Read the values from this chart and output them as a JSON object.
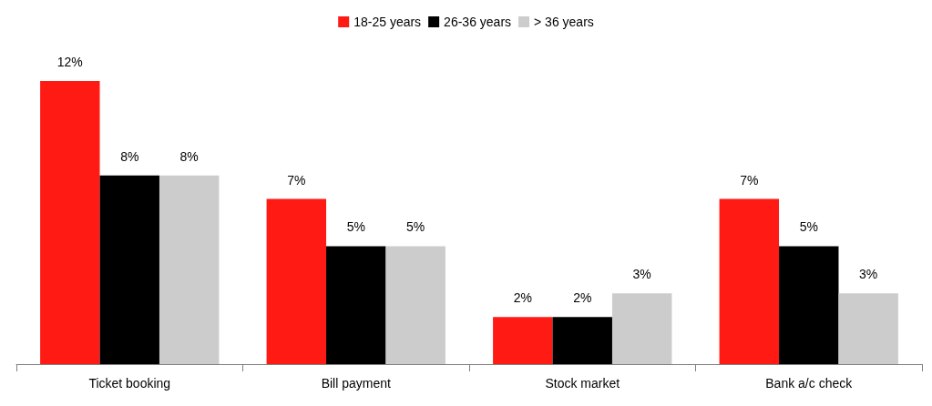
{
  "chart_data": {
    "type": "bar",
    "categories": [
      "Ticket booking",
      "Bill payment",
      "Stock market",
      "Bank a/c check"
    ],
    "series": [
      {
        "name": "18-25 years",
        "color": "#ff1a14",
        "values": [
          12,
          7,
          2,
          7
        ],
        "value_labels": [
          "12%",
          "7%",
          "2%",
          "7%"
        ]
      },
      {
        "name": "26-36 years",
        "color": "#000000",
        "values": [
          8,
          5,
          2,
          5
        ],
        "value_labels": [
          "8%",
          "5%",
          "2%",
          "5%"
        ]
      },
      {
        "name": "> 36 years",
        "color": "#cccccc",
        "values": [
          8,
          5,
          3,
          3
        ],
        "value_labels": [
          "8%",
          "5%",
          "3%",
          "3%"
        ]
      }
    ],
    "legend": "top",
    "grid": false
  }
}
